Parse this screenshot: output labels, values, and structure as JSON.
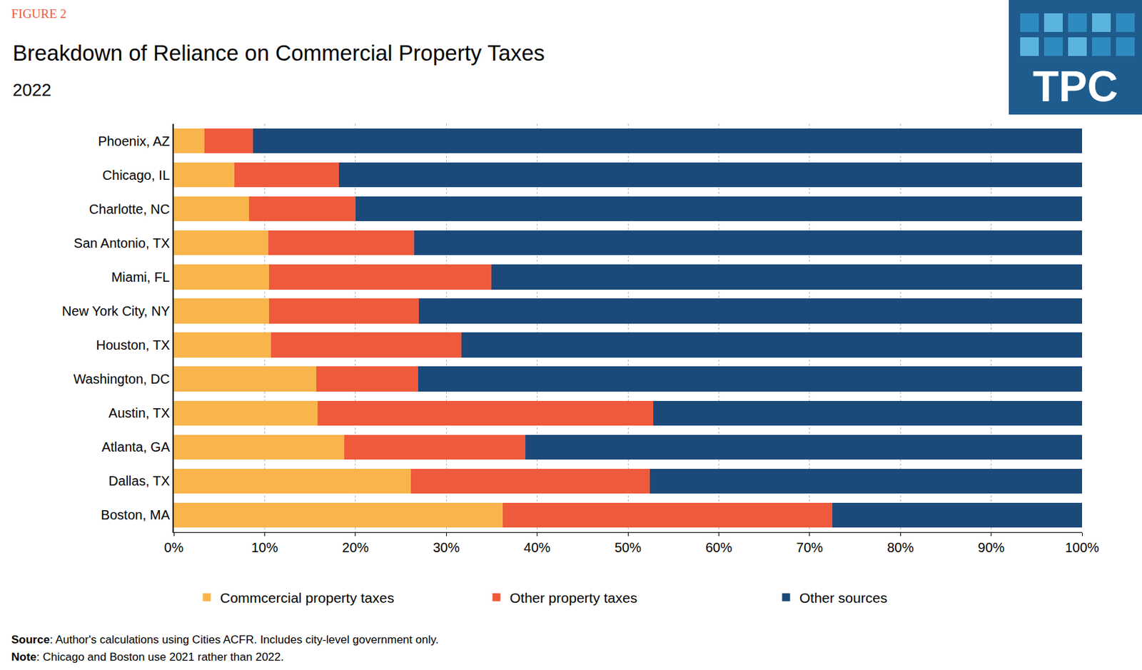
{
  "chart_data": {
    "type": "bar",
    "orientation": "horizontal",
    "stacked": true,
    "figure_label": "FIGURE 2",
    "title": "Breakdown of Reliance on Commercial Property Taxes",
    "subtitle": "2022",
    "logo": "TPC",
    "source": "Source: Author's calculations using Cities ACFR. Includes city-level government only.",
    "note": "Note: Chicago and Boston use 2021 rather than 2022.",
    "categories": [
      "Phoenix, AZ",
      "Chicago, IL",
      "Charlotte, NC",
      "San Antonio, TX",
      "Miami, FL",
      "New York City, NY",
      "Houston, TX",
      "Washington, DC",
      "Austin, TX",
      "Atlanta, GA",
      "Dallas, TX",
      "Boston, MA"
    ],
    "series": [
      {
        "name": "Commcercial property taxes",
        "color": "#F9B44C",
        "values": [
          3.4,
          6.7,
          8.3,
          10.4,
          10.5,
          10.5,
          10.7,
          15.7,
          15.8,
          18.8,
          26.1,
          36.2
        ]
      },
      {
        "name": "Other property taxes",
        "color": "#EF5A3C",
        "values": [
          5.3,
          11.5,
          11.7,
          16.1,
          24.5,
          16.5,
          21.0,
          11.2,
          37.0,
          19.9,
          26.3,
          36.3
        ]
      },
      {
        "name": "Other sources",
        "color": "#1B4A7A",
        "values": [
          91.3,
          81.8,
          80.0,
          73.5,
          65.0,
          73.0,
          68.3,
          73.1,
          47.2,
          61.3,
          47.6,
          27.5
        ]
      }
    ],
    "xlim": [
      0,
      100
    ],
    "xticks": [
      {
        "value": 0,
        "label": "0%"
      },
      {
        "value": 10,
        "label": "10%"
      },
      {
        "value": 20,
        "label": "20%"
      },
      {
        "value": 30,
        "label": "30%"
      },
      {
        "value": 40,
        "label": "40%"
      },
      {
        "value": 50,
        "label": "50%"
      },
      {
        "value": 60,
        "label": "60%"
      },
      {
        "value": 70,
        "label": "70%"
      },
      {
        "value": 80,
        "label": "80%"
      },
      {
        "value": 90,
        "label": "90%"
      },
      {
        "value": 100,
        "label": "100%"
      }
    ],
    "grid": true,
    "legend": "bottom",
    "data_labels": false
  }
}
